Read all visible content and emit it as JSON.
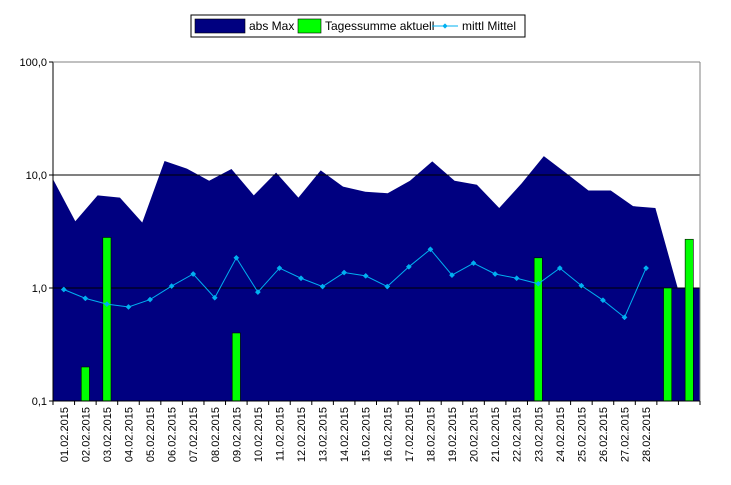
{
  "colors": {
    "area": "#000080",
    "bar": "#00FF00",
    "line": "#00B0F0",
    "grid": "#000000",
    "frame": "#000000",
    "background": "#FFFFFF"
  },
  "chart_data": {
    "type": "bar",
    "title": "",
    "xlabel": "",
    "ylabel": "",
    "yscale": "log",
    "ylim": [
      0.1,
      100
    ],
    "yticks": [
      {
        "value": 0.1,
        "label": "0,1"
      },
      {
        "value": 1,
        "label": "1,0"
      },
      {
        "value": 10,
        "label": "10,0"
      },
      {
        "value": 100,
        "label": "100,0"
      }
    ],
    "grid": true,
    "legend_position": "top-center",
    "slot_count": 30,
    "categories": [
      "01.02.2015",
      "02.02.2015",
      "03.02.2015",
      "04.02.2015",
      "05.02.2015",
      "06.02.2015",
      "07.02.2015",
      "08.02.2015",
      "09.02.2015",
      "10.02.2015",
      "11.02.2015",
      "12.02.2015",
      "13.02.2015",
      "14.02.2015",
      "15.02.2015",
      "16.02.2015",
      "17.02.2015",
      "18.02.2015",
      "19.02.2015",
      "20.02.2015",
      "21.02.2015",
      "22.02.2015",
      "23.02.2015",
      "24.02.2015",
      "25.02.2015",
      "26.02.2015",
      "27.02.2015",
      "28.02.2015",
      "",
      ""
    ],
    "series": [
      {
        "name": "abs Max",
        "type": "area",
        "values": [
          9.2,
          3.9,
          6.6,
          6.3,
          3.8,
          13.3,
          11.4,
          8.9,
          11.3,
          6.6,
          10.5,
          6.3,
          11.0,
          7.9,
          7.1,
          6.9,
          8.9,
          13.2,
          8.9,
          8.2,
          5.1,
          8.4,
          14.7,
          10.4,
          7.3,
          7.3,
          5.3,
          5.1,
          1.0,
          1.0
        ]
      },
      {
        "name": "Tagessumme aktuell",
        "type": "bar",
        "values": [
          null,
          0.2,
          2.8,
          null,
          null,
          null,
          null,
          null,
          0.4,
          null,
          null,
          null,
          null,
          null,
          null,
          null,
          null,
          null,
          null,
          null,
          null,
          null,
          1.85,
          null,
          null,
          null,
          null,
          null,
          1.0,
          2.7
        ]
      },
      {
        "name": "mittl Mittel",
        "type": "line",
        "values": [
          0.97,
          0.81,
          0.72,
          0.68,
          0.79,
          1.04,
          1.33,
          0.82,
          1.85,
          0.92,
          1.5,
          1.22,
          1.03,
          1.37,
          1.28,
          1.03,
          1.54,
          2.2,
          1.3,
          1.66,
          1.33,
          1.22,
          1.09,
          1.5,
          1.05,
          0.78,
          0.55,
          1.5,
          null,
          null
        ]
      }
    ]
  }
}
